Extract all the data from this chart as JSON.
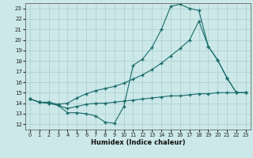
{
  "xlabel": "Humidex (Indice chaleur)",
  "bg_color": "#cce8e8",
  "grid_color": "#aacece",
  "line_color": "#1a6b6b",
  "xlim": [
    -0.5,
    23.5
  ],
  "ylim": [
    11.5,
    23.5
  ],
  "xticks": [
    0,
    1,
    2,
    3,
    4,
    5,
    6,
    7,
    8,
    9,
    10,
    11,
    12,
    13,
    14,
    15,
    16,
    17,
    18,
    19,
    20,
    21,
    22,
    23
  ],
  "yticks": [
    12,
    13,
    14,
    15,
    16,
    17,
    18,
    19,
    20,
    21,
    22,
    23
  ],
  "line1_x": [
    0,
    1,
    2,
    3,
    4,
    5,
    6,
    7,
    8,
    9,
    10,
    11,
    12,
    13,
    14,
    15,
    16,
    17,
    18,
    19,
    20,
    21,
    22,
    23
  ],
  "line1_y": [
    14.4,
    14.1,
    14.0,
    13.8,
    13.1,
    13.1,
    13.0,
    12.8,
    12.2,
    12.1,
    13.7,
    17.6,
    18.2,
    19.3,
    21.0,
    23.2,
    23.4,
    23.0,
    22.8,
    19.4,
    18.1,
    16.4,
    15.0,
    15.0
  ],
  "line2_x": [
    0,
    1,
    2,
    3,
    4,
    5,
    6,
    7,
    8,
    9,
    10,
    11,
    12,
    13,
    14,
    15,
    16,
    17,
    18,
    19,
    20,
    21,
    22,
    23
  ],
  "line2_y": [
    14.4,
    14.1,
    14.1,
    13.9,
    14.0,
    14.5,
    14.9,
    15.2,
    15.4,
    15.6,
    15.9,
    16.3,
    16.7,
    17.2,
    17.8,
    18.5,
    19.2,
    20.0,
    21.8,
    19.4,
    18.1,
    16.4,
    15.0,
    15.0
  ],
  "line3_x": [
    0,
    1,
    2,
    3,
    4,
    5,
    6,
    7,
    8,
    9,
    10,
    11,
    12,
    13,
    14,
    15,
    16,
    17,
    18,
    19,
    20,
    21,
    22,
    23
  ],
  "line3_y": [
    14.4,
    14.1,
    14.0,
    13.8,
    13.5,
    13.7,
    13.9,
    14.0,
    14.0,
    14.1,
    14.2,
    14.3,
    14.4,
    14.5,
    14.6,
    14.7,
    14.7,
    14.8,
    14.9,
    14.9,
    15.0,
    15.0,
    15.0,
    15.0
  ]
}
